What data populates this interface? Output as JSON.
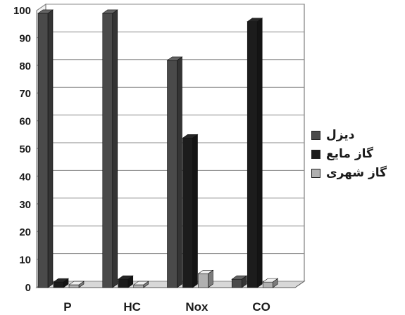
{
  "chart_data": {
    "type": "bar",
    "categories": [
      "P",
      "HC",
      "Nox",
      "CO"
    ],
    "series": [
      {
        "name": "دیزل",
        "values": [
          99,
          99,
          82,
          3
        ],
        "color": "#4a4a4a"
      },
      {
        "name": "گاز مایع",
        "values": [
          2,
          3,
          54,
          96
        ],
        "color": "#1c1c1c"
      },
      {
        "name": "گاز شهری",
        "values": [
          1,
          1,
          5,
          2
        ],
        "color": "#b0b0b0"
      }
    ],
    "ylim": [
      0,
      100
    ],
    "yticks": [
      0,
      10,
      20,
      30,
      40,
      50,
      60,
      70,
      80,
      90,
      100
    ],
    "grid": true,
    "legend_position": "right",
    "title": "",
    "xlabel": "",
    "ylabel": ""
  }
}
